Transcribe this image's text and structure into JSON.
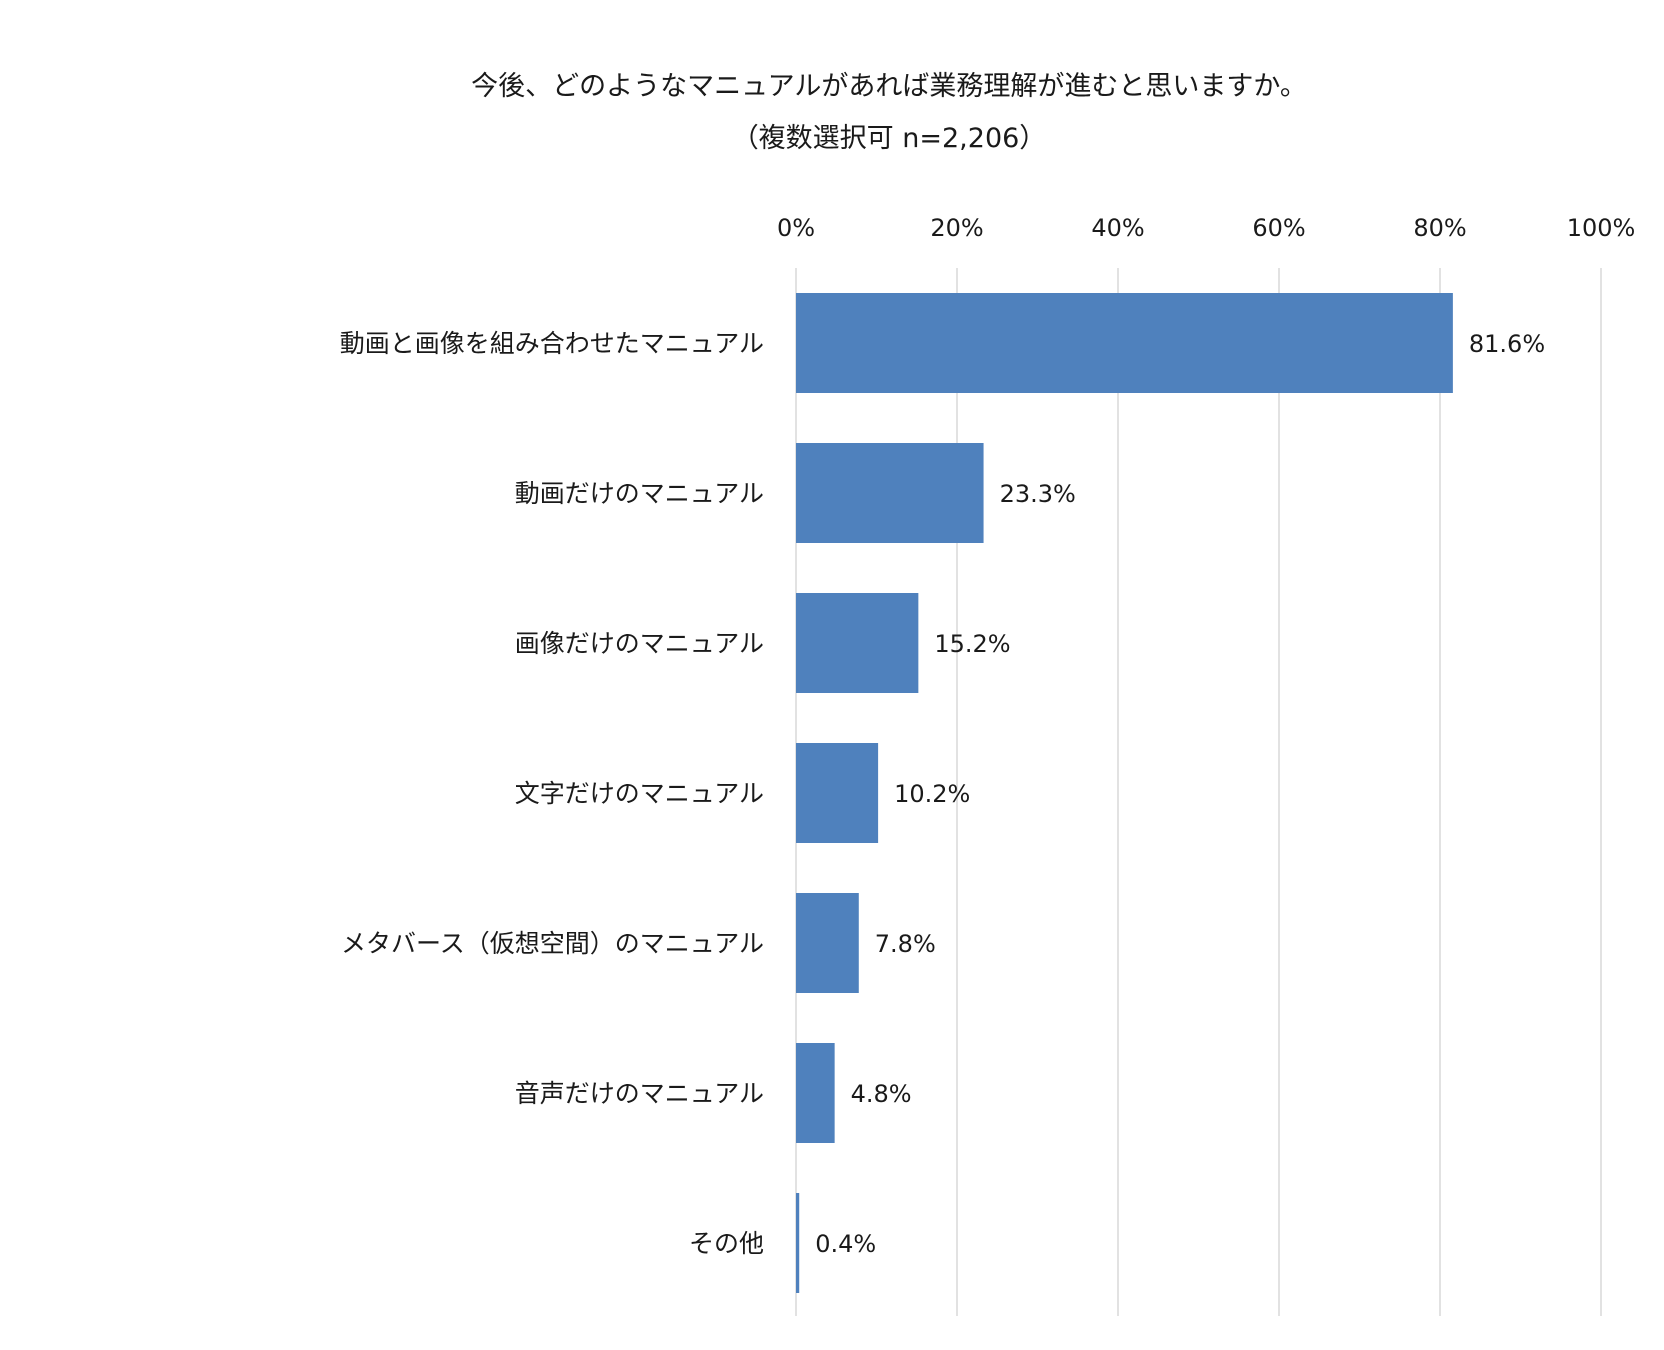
{
  "chart_data": {
    "type": "bar",
    "orientation": "horizontal",
    "title": "今後、どのようなマニュアルがあれば業務理解が進むと思いますか。",
    "subtitle": "（複数選択可 n=2,206）",
    "categories": [
      "動画と画像を組み合わせたマニュアル",
      "動画だけのマニュアル",
      "画像だけのマニュアル",
      "文字だけのマニュアル",
      "メタバース（仮想空間）のマニュアル",
      "音声だけのマニュアル",
      "その他"
    ],
    "values": [
      81.6,
      23.3,
      15.2,
      10.2,
      7.8,
      4.8,
      0.4
    ],
    "value_labels": [
      "81.6%",
      "23.3%",
      "15.2%",
      "10.2%",
      "7.8%",
      "4.8%",
      "0.4%"
    ],
    "xlim": [
      0,
      100
    ],
    "x_ticks": [
      0,
      20,
      40,
      60,
      80,
      100
    ],
    "x_tick_labels": [
      "0%",
      "20%",
      "40%",
      "60%",
      "80%",
      "100%"
    ],
    "xaxis_position": "top",
    "grid": true,
    "bar_color": "#4f81bd",
    "grid_color": "#d9d9d9"
  }
}
